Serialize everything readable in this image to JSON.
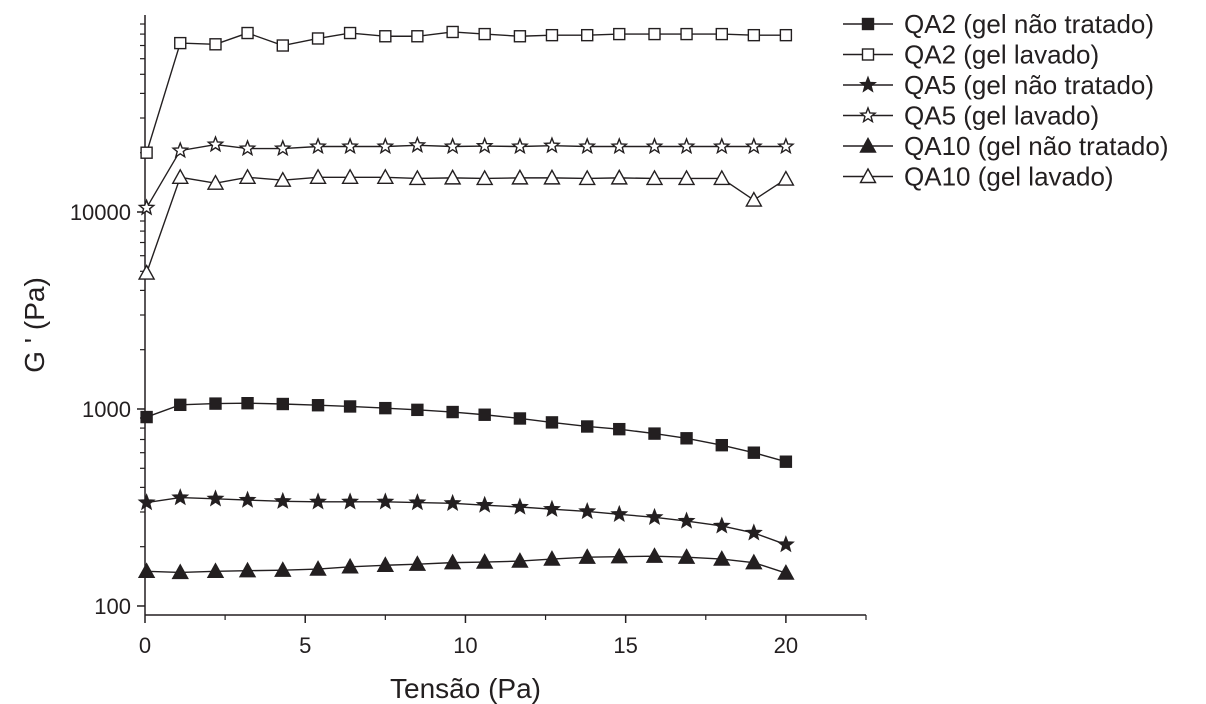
{
  "chart_data": {
    "type": "line",
    "title": "",
    "xlabel": "Tensão (Pa)",
    "ylabel": "G ' (Pa)",
    "xlim": [
      0,
      22.5
    ],
    "ylim": [
      90,
      100000
    ],
    "yscale": "log",
    "x_ticks": [
      0,
      5,
      10,
      15,
      20
    ],
    "x_tick_labels": [
      "0",
      "5",
      "10",
      "15",
      "20"
    ],
    "y_ticks": [
      100,
      1000,
      10000
    ],
    "y_tick_labels": [
      "100",
      "1000",
      "10000"
    ],
    "grid": false,
    "legend_position": "top-right",
    "color": "#231f20",
    "x": [
      0.05,
      1.1,
      2.2,
      3.2,
      4.3,
      5.4,
      6.4,
      7.5,
      8.5,
      9.6,
      10.6,
      11.7,
      12.7,
      13.8,
      14.8,
      15.9,
      16.9,
      18.0,
      19.0,
      20.0
    ],
    "series": [
      {
        "name": "QA2 (gel não tratado)",
        "marker": "filled-square",
        "y": [
          910,
          1050,
          1065,
          1070,
          1060,
          1045,
          1030,
          1010,
          990,
          965,
          935,
          895,
          855,
          815,
          790,
          750,
          710,
          655,
          600,
          540
        ]
      },
      {
        "name": "QA2 (gel lavado)",
        "marker": "open-square",
        "y": [
          20000,
          72000,
          71000,
          81000,
          70000,
          76000,
          81000,
          78000,
          78000,
          82000,
          80000,
          78000,
          79000,
          79000,
          80000,
          80000,
          80000,
          80000,
          79000,
          79000
        ]
      },
      {
        "name": "QA5 (gel não tratado)",
        "marker": "filled-star",
        "y": [
          335,
          355,
          350,
          345,
          340,
          338,
          338,
          338,
          335,
          332,
          325,
          318,
          310,
          302,
          292,
          282,
          270,
          255,
          235,
          205
        ]
      },
      {
        "name": "QA5 (gel lavado)",
        "marker": "open-star",
        "y": [
          10500,
          20500,
          22000,
          21000,
          21000,
          21500,
          21500,
          21500,
          21800,
          21500,
          21600,
          21500,
          21700,
          21500,
          21500,
          21500,
          21500,
          21500,
          21500,
          21500
        ]
      },
      {
        "name": "QA10 (gel não tratado)",
        "marker": "filled-triangle",
        "y": [
          150,
          148,
          150,
          151,
          152,
          154,
          158,
          161,
          163,
          166,
          167,
          169,
          173,
          177,
          178,
          179,
          177,
          173,
          166,
          147
        ]
      },
      {
        "name": "QA10 (gel lavado)",
        "marker": "open-triangle",
        "y": [
          4900,
          15000,
          14000,
          15000,
          14500,
          15000,
          15000,
          15000,
          14800,
          14900,
          14800,
          14900,
          14900,
          14800,
          14900,
          14800,
          14800,
          14800,
          11500,
          14700
        ]
      }
    ]
  }
}
